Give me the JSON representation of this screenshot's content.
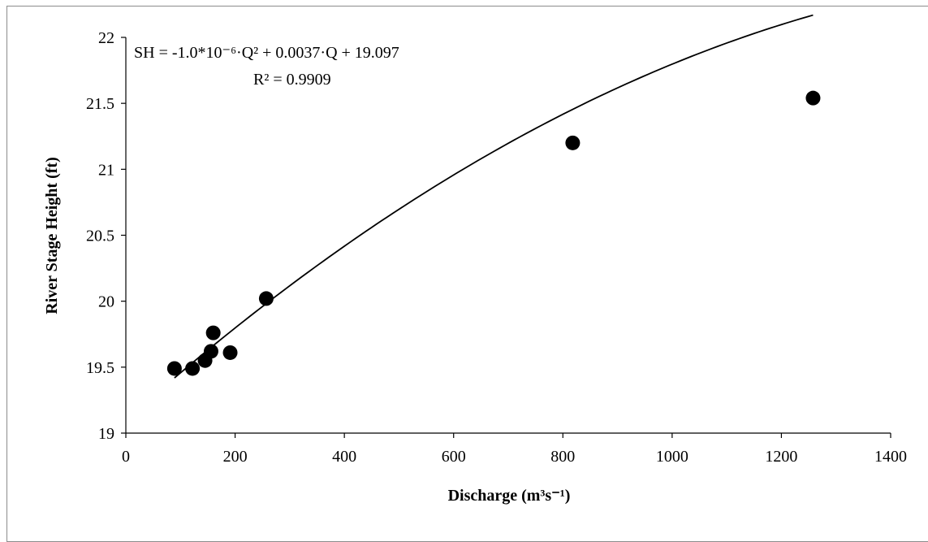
{
  "chart_data": {
    "type": "scatter",
    "xlabel": "Discharge (m³s⁻¹)",
    "ylabel": "River Stage Height (ft)",
    "xlim": [
      0,
      1400
    ],
    "ylim": [
      19,
      22
    ],
    "x_ticks": [
      "0",
      "200",
      "400",
      "600",
      "800",
      "1000",
      "1200",
      "1400"
    ],
    "y_ticks": [
      "19",
      "19.5",
      "20",
      "20.5",
      "21",
      "21.5",
      "22"
    ],
    "grid": false,
    "points": [
      {
        "x": 89,
        "y": 19.49
      },
      {
        "x": 122,
        "y": 19.49
      },
      {
        "x": 145,
        "y": 19.55
      },
      {
        "x": 156,
        "y": 19.62
      },
      {
        "x": 160,
        "y": 19.76
      },
      {
        "x": 191,
        "y": 19.61
      },
      {
        "x": 257,
        "y": 20.02
      },
      {
        "x": 818,
        "y": 21.2
      },
      {
        "x": 1258,
        "y": 21.54
      }
    ],
    "trendline": {
      "type": "polynomial",
      "coefficients": [
        -1e-06,
        0.0037,
        19.097
      ],
      "x_range": [
        89,
        1258
      ]
    },
    "annotations": {
      "equation": "SH = -1.0*10⁻⁶·Q² + 0.0037·Q + 19.097",
      "r_squared": "R² = 0.9909"
    }
  }
}
